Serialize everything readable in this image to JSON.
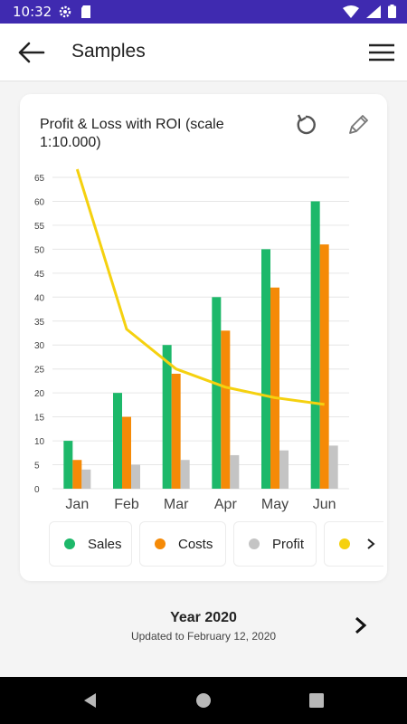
{
  "status_bar": {
    "time": "10:32",
    "icons_left": [
      "gear-icon",
      "sd-card-icon"
    ],
    "icons_right": [
      "wifi-icon",
      "signal-icon",
      "battery-icon"
    ]
  },
  "app_bar": {
    "title": "Samples",
    "back_icon": "arrow-left-icon",
    "menu_icon": "hamburger-menu-icon"
  },
  "card": {
    "title": "Profit & Loss with ROI (scale 1:10.000)",
    "actions": [
      "reset-icon",
      "edit-pencil-icon"
    ]
  },
  "chart_data": {
    "type": "bar",
    "title": "Profit & Loss with ROI (scale 1:10.000)",
    "categories": [
      "Jan",
      "Feb",
      "Mar",
      "Apr",
      "May",
      "Jun"
    ],
    "ylim": [
      0,
      65
    ],
    "yticks": [
      0,
      5,
      10,
      15,
      20,
      25,
      30,
      35,
      40,
      45,
      50,
      55,
      60,
      65
    ],
    "grid": true,
    "series": [
      {
        "name": "Sales",
        "kind": "bar",
        "color": "#1db86a",
        "values": [
          10,
          20,
          30,
          40,
          50,
          60
        ]
      },
      {
        "name": "Costs",
        "kind": "bar",
        "color": "#f58a07",
        "values": [
          6,
          15,
          24,
          33,
          42,
          51
        ]
      },
      {
        "name": "Profit",
        "kind": "bar",
        "color": "#c4c4c4",
        "values": [
          4,
          5,
          6,
          7,
          8,
          9
        ]
      },
      {
        "kind": "line",
        "color": "#f5d10f",
        "values": [
          66.7,
          33.3,
          25.0,
          21.2,
          19.0,
          17.6
        ]
      }
    ]
  },
  "legend": {
    "items": [
      {
        "label": "Sales",
        "color": "#1db86a"
      },
      {
        "label": "Costs",
        "color": "#f58a07"
      },
      {
        "label": "Profit",
        "color": "#c4c4c4"
      },
      {
        "label": "",
        "color": "#f5d10f"
      }
    ],
    "next_icon": "chevron-right-icon"
  },
  "footer": {
    "year": "Year 2020",
    "updated": "Updated to  February 12, 2020",
    "next_icon": "chevron-right-icon"
  },
  "nav_bar": {
    "buttons": [
      "back-triangle-icon",
      "home-circle-icon",
      "recents-square-icon"
    ]
  }
}
